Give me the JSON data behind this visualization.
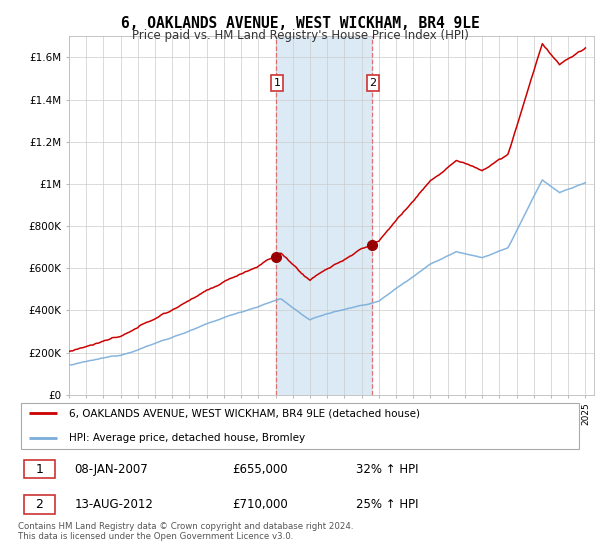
{
  "title": "6, OAKLANDS AVENUE, WEST WICKHAM, BR4 9LE",
  "subtitle": "Price paid vs. HM Land Registry's House Price Index (HPI)",
  "ylabel_ticks": [
    "£0",
    "£200K",
    "£400K",
    "£600K",
    "£800K",
    "£1M",
    "£1.2M",
    "£1.4M",
    "£1.6M"
  ],
  "ylim": [
    0,
    1700000
  ],
  "yticks": [
    0,
    200000,
    400000,
    600000,
    800000,
    1000000,
    1200000,
    1400000,
    1600000
  ],
  "xlim_start": 1995.0,
  "xlim_end": 2025.5,
  "sale1_date_num": 2007.04,
  "sale1_price": 655000,
  "sale2_date_num": 2012.62,
  "sale2_price": 710000,
  "legend_line1": "6, OAKLANDS AVENUE, WEST WICKHAM, BR4 9LE (detached house)",
  "legend_line2": "HPI: Average price, detached house, Bromley",
  "footer": "Contains HM Land Registry data © Crown copyright and database right 2024.\nThis data is licensed under the Open Government Licence v3.0.",
  "line_color_red": "#cc0000",
  "line_color_blue": "#7aadda",
  "shade_color": "#dbeaf5",
  "vline_color": "#e06060",
  "background_color": "#ffffff",
  "grid_color": "#cccccc",
  "marker_color": "#990000"
}
